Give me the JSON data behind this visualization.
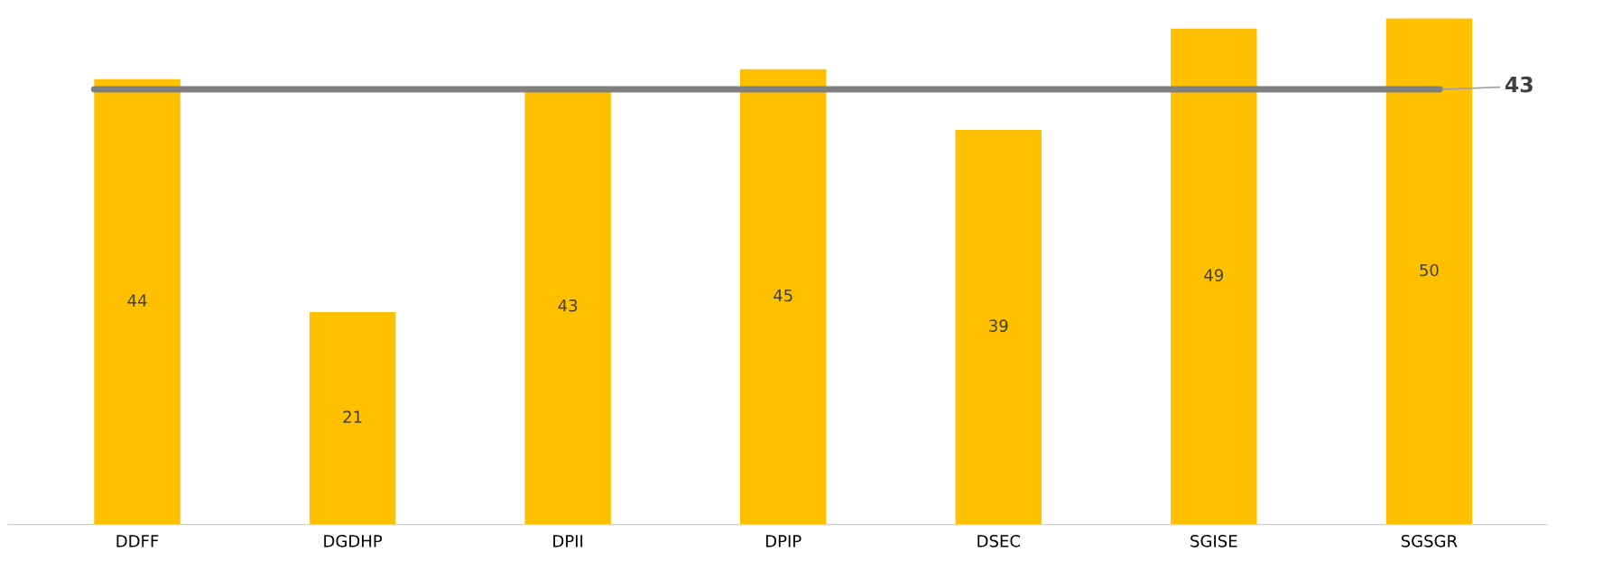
{
  "chart_data": {
    "type": "bar",
    "categories": [
      "DDFF",
      "DGDHP",
      "DPII",
      "DPIP",
      "DSEC",
      "SGISE",
      "SGSGR"
    ],
    "values": [
      44,
      21,
      43,
      45,
      39,
      49,
      50
    ],
    "color": "#ffc000",
    "data_labels": true,
    "ref_lines": [
      {
        "axis": "y",
        "value": 43,
        "label": "43",
        "color": "#7f7f7f",
        "line_style": "solid"
      }
    ],
    "grid": false,
    "legend": false
  }
}
